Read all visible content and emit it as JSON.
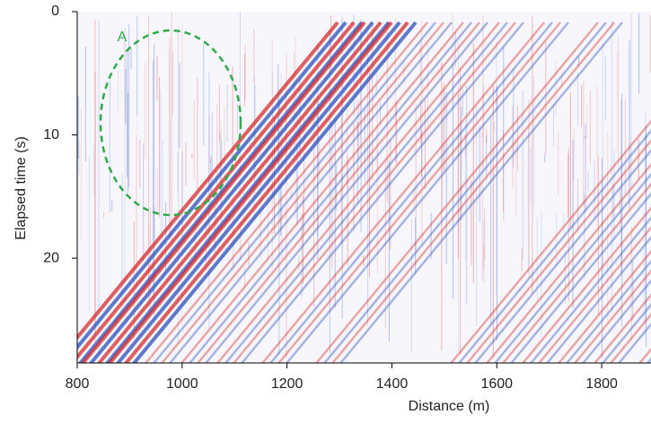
{
  "chart_data": {
    "type": "image",
    "xlabel": "Distance (m)",
    "ylabel": "Elapsed time (s)",
    "xlim": [
      800,
      1894
    ],
    "xticks": [
      800,
      1000,
      1200,
      1400,
      1600,
      1800
    ],
    "ylim": [
      28.5,
      0
    ],
    "yticks": [
      0,
      10,
      20
    ],
    "annotations": [
      "A"
    ]
  }
}
